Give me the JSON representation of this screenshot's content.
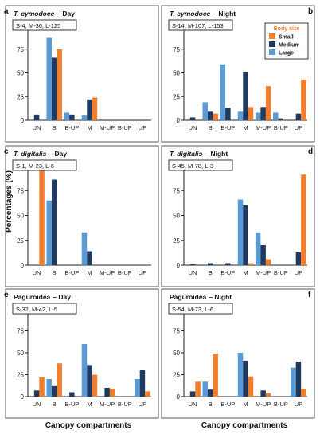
{
  "figure": {
    "shared_ylabel": "Percentages (%)",
    "shared_xlabel": "Canopy compartments",
    "legend_title": "Body size",
    "categories": [
      "UN",
      "B",
      "B-UP",
      "M",
      "M-UP",
      "B-UP",
      "UP"
    ],
    "ylim": [
      0,
      100
    ],
    "yticks": [
      "0",
      "25",
      "50",
      "75",
      "100"
    ],
    "series_names": [
      "Small",
      "Medium",
      "Large"
    ],
    "colors": {
      "Small": "#ef7f2e",
      "Medium": "#1f3a61",
      "Large": "#5b9bd5"
    }
  },
  "chart_data": [
    {
      "type": "bar",
      "panel_letter": "a",
      "species": "T. cymodoce",
      "period": "– Day",
      "counts": "S-4, M-36, L-125",
      "show_ylabel": false,
      "show_legend": false,
      "show_xlabel": false,
      "categories": [
        "UN",
        "B",
        "B-UP",
        "M",
        "M-UP",
        "B-UP",
        "UP"
      ],
      "ylim": [
        0,
        100
      ],
      "series": [
        {
          "name": "Large",
          "values": [
            0,
            87,
            8,
            5,
            0,
            0,
            0
          ]
        },
        {
          "name": "Medium",
          "values": [
            6,
            66,
            6,
            22,
            0,
            0,
            0
          ]
        },
        {
          "name": "Small",
          "values": [
            0,
            75,
            0,
            24,
            0,
            0,
            0
          ]
        }
      ]
    },
    {
      "type": "bar",
      "panel_letter": "b",
      "species": "T. cymodoce",
      "period": "– Night",
      "counts": "S-14, M-107, L-153",
      "show_ylabel": false,
      "show_legend": true,
      "show_xlabel": false,
      "categories": [
        "UN",
        "B",
        "B-UP",
        "M",
        "M-UP",
        "B-UP",
        "UP"
      ],
      "ylim": [
        0,
        100
      ],
      "series": [
        {
          "name": "Large",
          "values": [
            0,
            19,
            59,
            9,
            8,
            8,
            0
          ]
        },
        {
          "name": "Medium",
          "values": [
            3,
            9,
            13,
            51,
            14,
            2,
            7
          ]
        },
        {
          "name": "Small",
          "values": [
            0,
            7,
            0,
            14,
            36,
            0,
            43
          ]
        }
      ]
    },
    {
      "type": "bar",
      "panel_letter": "c",
      "species": "T. digitalis",
      "period": "– Day",
      "counts": "S-1, M-23, L-6",
      "show_ylabel": true,
      "show_legend": false,
      "show_xlabel": false,
      "categories": [
        "UN",
        "B",
        "B-UP",
        "M",
        "M-UP",
        "B-UP",
        "UP"
      ],
      "ylim": [
        0,
        100
      ],
      "series": [
        {
          "name": "Large",
          "values": [
            0,
            65,
            0,
            33,
            0,
            0,
            0
          ]
        },
        {
          "name": "Medium",
          "values": [
            0,
            86,
            0,
            14,
            0,
            0,
            0
          ]
        },
        {
          "name": "Small",
          "values": [
            100,
            0,
            0,
            0,
            0,
            0,
            0
          ]
        }
      ]
    },
    {
      "type": "bar",
      "panel_letter": "d",
      "species": "T. digitalis",
      "period": "– Night",
      "counts": "S-45, M-78, L-3",
      "show_ylabel": false,
      "show_legend": false,
      "show_xlabel": false,
      "categories": [
        "UN",
        "B",
        "B-UP",
        "M",
        "M-UP",
        "B-UP",
        "UP"
      ],
      "ylim": [
        0,
        100
      ],
      "series": [
        {
          "name": "Large",
          "values": [
            0,
            0,
            0,
            66,
            33,
            0,
            0
          ]
        },
        {
          "name": "Medium",
          "values": [
            1,
            2,
            2,
            60,
            20,
            0,
            13
          ]
        },
        {
          "name": "Small",
          "values": [
            0,
            0,
            0,
            2,
            6,
            0,
            91
          ]
        }
      ]
    },
    {
      "type": "bar",
      "panel_letter": "e",
      "species": "Paguroidea",
      "period": "– Day",
      "counts": "S-32, M-42, L-5",
      "show_ylabel": false,
      "show_legend": false,
      "show_xlabel": true,
      "categories": [
        "UN",
        "B",
        "B-UP",
        "M",
        "M-UP",
        "B-UP",
        "UP"
      ],
      "ylim": [
        0,
        100
      ],
      "series": [
        {
          "name": "Large",
          "values": [
            0,
            20,
            0,
            60,
            0,
            0,
            20
          ]
        },
        {
          "name": "Medium",
          "values": [
            7,
            12,
            5,
            36,
            10,
            0,
            30
          ]
        },
        {
          "name": "Small",
          "values": [
            22,
            38,
            0,
            25,
            9,
            0,
            6
          ]
        }
      ]
    },
    {
      "type": "bar",
      "panel_letter": "f",
      "species": "Paguroidea",
      "period": "– Night",
      "counts": "S-54, M-73, L-6",
      "show_ylabel": false,
      "show_legend": false,
      "show_xlabel": true,
      "categories": [
        "UN",
        "B",
        "B-UP",
        "M",
        "M-UP",
        "B-UP",
        "UP"
      ],
      "ylim": [
        0,
        100
      ],
      "series": [
        {
          "name": "Large",
          "values": [
            0,
            17,
            0,
            50,
            0,
            0,
            33
          ]
        },
        {
          "name": "Medium",
          "values": [
            6,
            8,
            0,
            41,
            7,
            0,
            40
          ]
        },
        {
          "name": "Small",
          "values": [
            17,
            49,
            0,
            23,
            4,
            0,
            9
          ]
        }
      ]
    }
  ]
}
